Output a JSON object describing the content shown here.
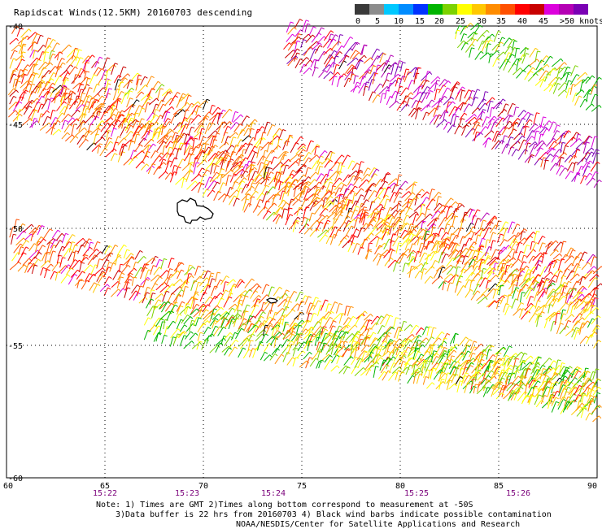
{
  "title": "Rapidscat Winds(12.5KM) 20160703 descending",
  "legend": {
    "colors": [
      "#3a3a3a",
      "#8c8c8c",
      "#00c8ff",
      "#008cff",
      "#0032ff",
      "#00b400",
      "#7cd200",
      "#ffff00",
      "#ffc800",
      "#ff8c00",
      "#ff5000",
      "#ff0000",
      "#c80000",
      "#dc00dc",
      "#b400b4",
      "#7a00b4"
    ],
    "labels": [
      "0",
      "5",
      "10",
      "15",
      "20",
      "25",
      "30",
      "35",
      "40",
      "45",
      ">50 knots"
    ]
  },
  "axes": {
    "lon_labels": [
      "60",
      "65",
      "70",
      "75",
      "80",
      "85",
      "90"
    ],
    "lat_labels": [
      "-40",
      "-45",
      "-50",
      "-55",
      "-60"
    ],
    "time_labels": [
      "15:22",
      "15:23",
      "15:24",
      "15:25",
      "15:26"
    ]
  },
  "notes": {
    "line1": "Note: 1) Times are GMT 2)Times along bottom correspond to measurement at -50S",
    "line2": "3)Data buffer is 22 hrs from 20160703 4) Black wind barbs indicate possible contamination",
    "credit": "NOAA/NESDIS/Center for Satellite Applications and Research"
  },
  "colors": {
    "time_label": "#7a007a",
    "grid": "#000000"
  }
}
